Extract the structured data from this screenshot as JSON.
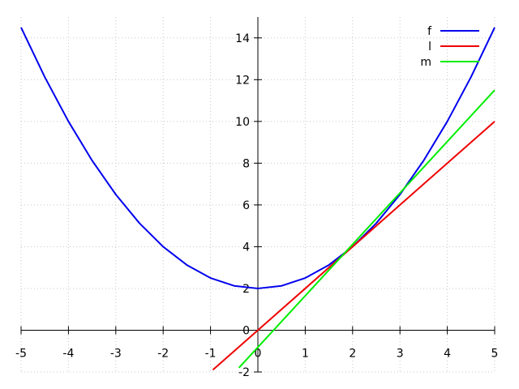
{
  "chart_data": {
    "type": "line",
    "title": "",
    "xlabel": "",
    "ylabel": "",
    "xlim": [
      -5,
      5
    ],
    "ylim": [
      -2,
      15
    ],
    "x_ticks": [
      -5,
      -4,
      -3,
      -2,
      -1,
      0,
      1,
      2,
      3,
      4,
      5
    ],
    "y_ticks": [
      -2,
      0,
      2,
      4,
      6,
      8,
      10,
      12,
      14
    ],
    "grid": true,
    "legend_position": "top-right",
    "series": [
      {
        "name": "f",
        "color": "#0000ee",
        "x": [
          -5,
          -4.5,
          -4,
          -3.5,
          -3,
          -2.5,
          -2,
          -1.5,
          -1,
          -0.5,
          0,
          0.5,
          1,
          1.5,
          2,
          2.5,
          3,
          3.5,
          4,
          4.5,
          5
        ],
        "y": [
          14.5,
          12.125,
          10,
          8.125,
          6.5,
          5.125,
          4,
          3.125,
          2.5,
          2.125,
          2,
          2.125,
          2.5,
          3.125,
          4,
          5.125,
          6.5,
          8.125,
          10,
          12.125,
          14.5
        ]
      },
      {
        "name": "l",
        "color": "#ee0000",
        "x": [
          -0.95,
          5
        ],
        "y": [
          -1.9,
          10
        ]
      },
      {
        "name": "m",
        "color": "#00ee00",
        "x": [
          -0.4,
          5
        ],
        "y": [
          -1.8,
          11.5
        ]
      }
    ]
  }
}
